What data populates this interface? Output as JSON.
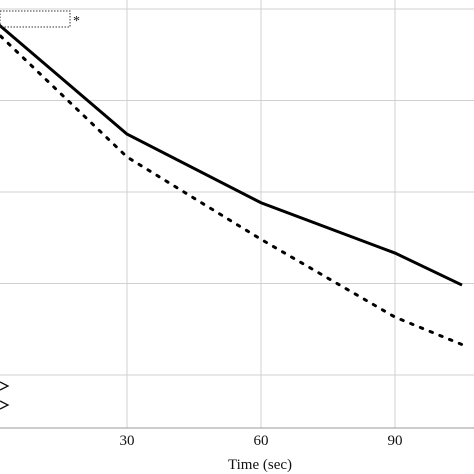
{
  "chart_data": {
    "type": "line",
    "x_ticks": [
      30,
      60,
      90
    ],
    "xlabel": "Time (sec)",
    "xlim": [
      0,
      105
    ],
    "ylim": [
      0,
      5
    ],
    "grid": true,
    "series": [
      {
        "style": "solid",
        "color": "#000000",
        "x": [
          0,
          30,
          60,
          90,
          105
        ],
        "y": [
          4.85,
          3.6,
          2.85,
          2.3,
          1.95
        ]
      },
      {
        "style": "dotted",
        "color": "#000000",
        "x": [
          0,
          30,
          60,
          90,
          105
        ],
        "y": [
          4.75,
          3.35,
          2.45,
          1.6,
          1.3
        ]
      }
    ],
    "annotation": "*"
  }
}
